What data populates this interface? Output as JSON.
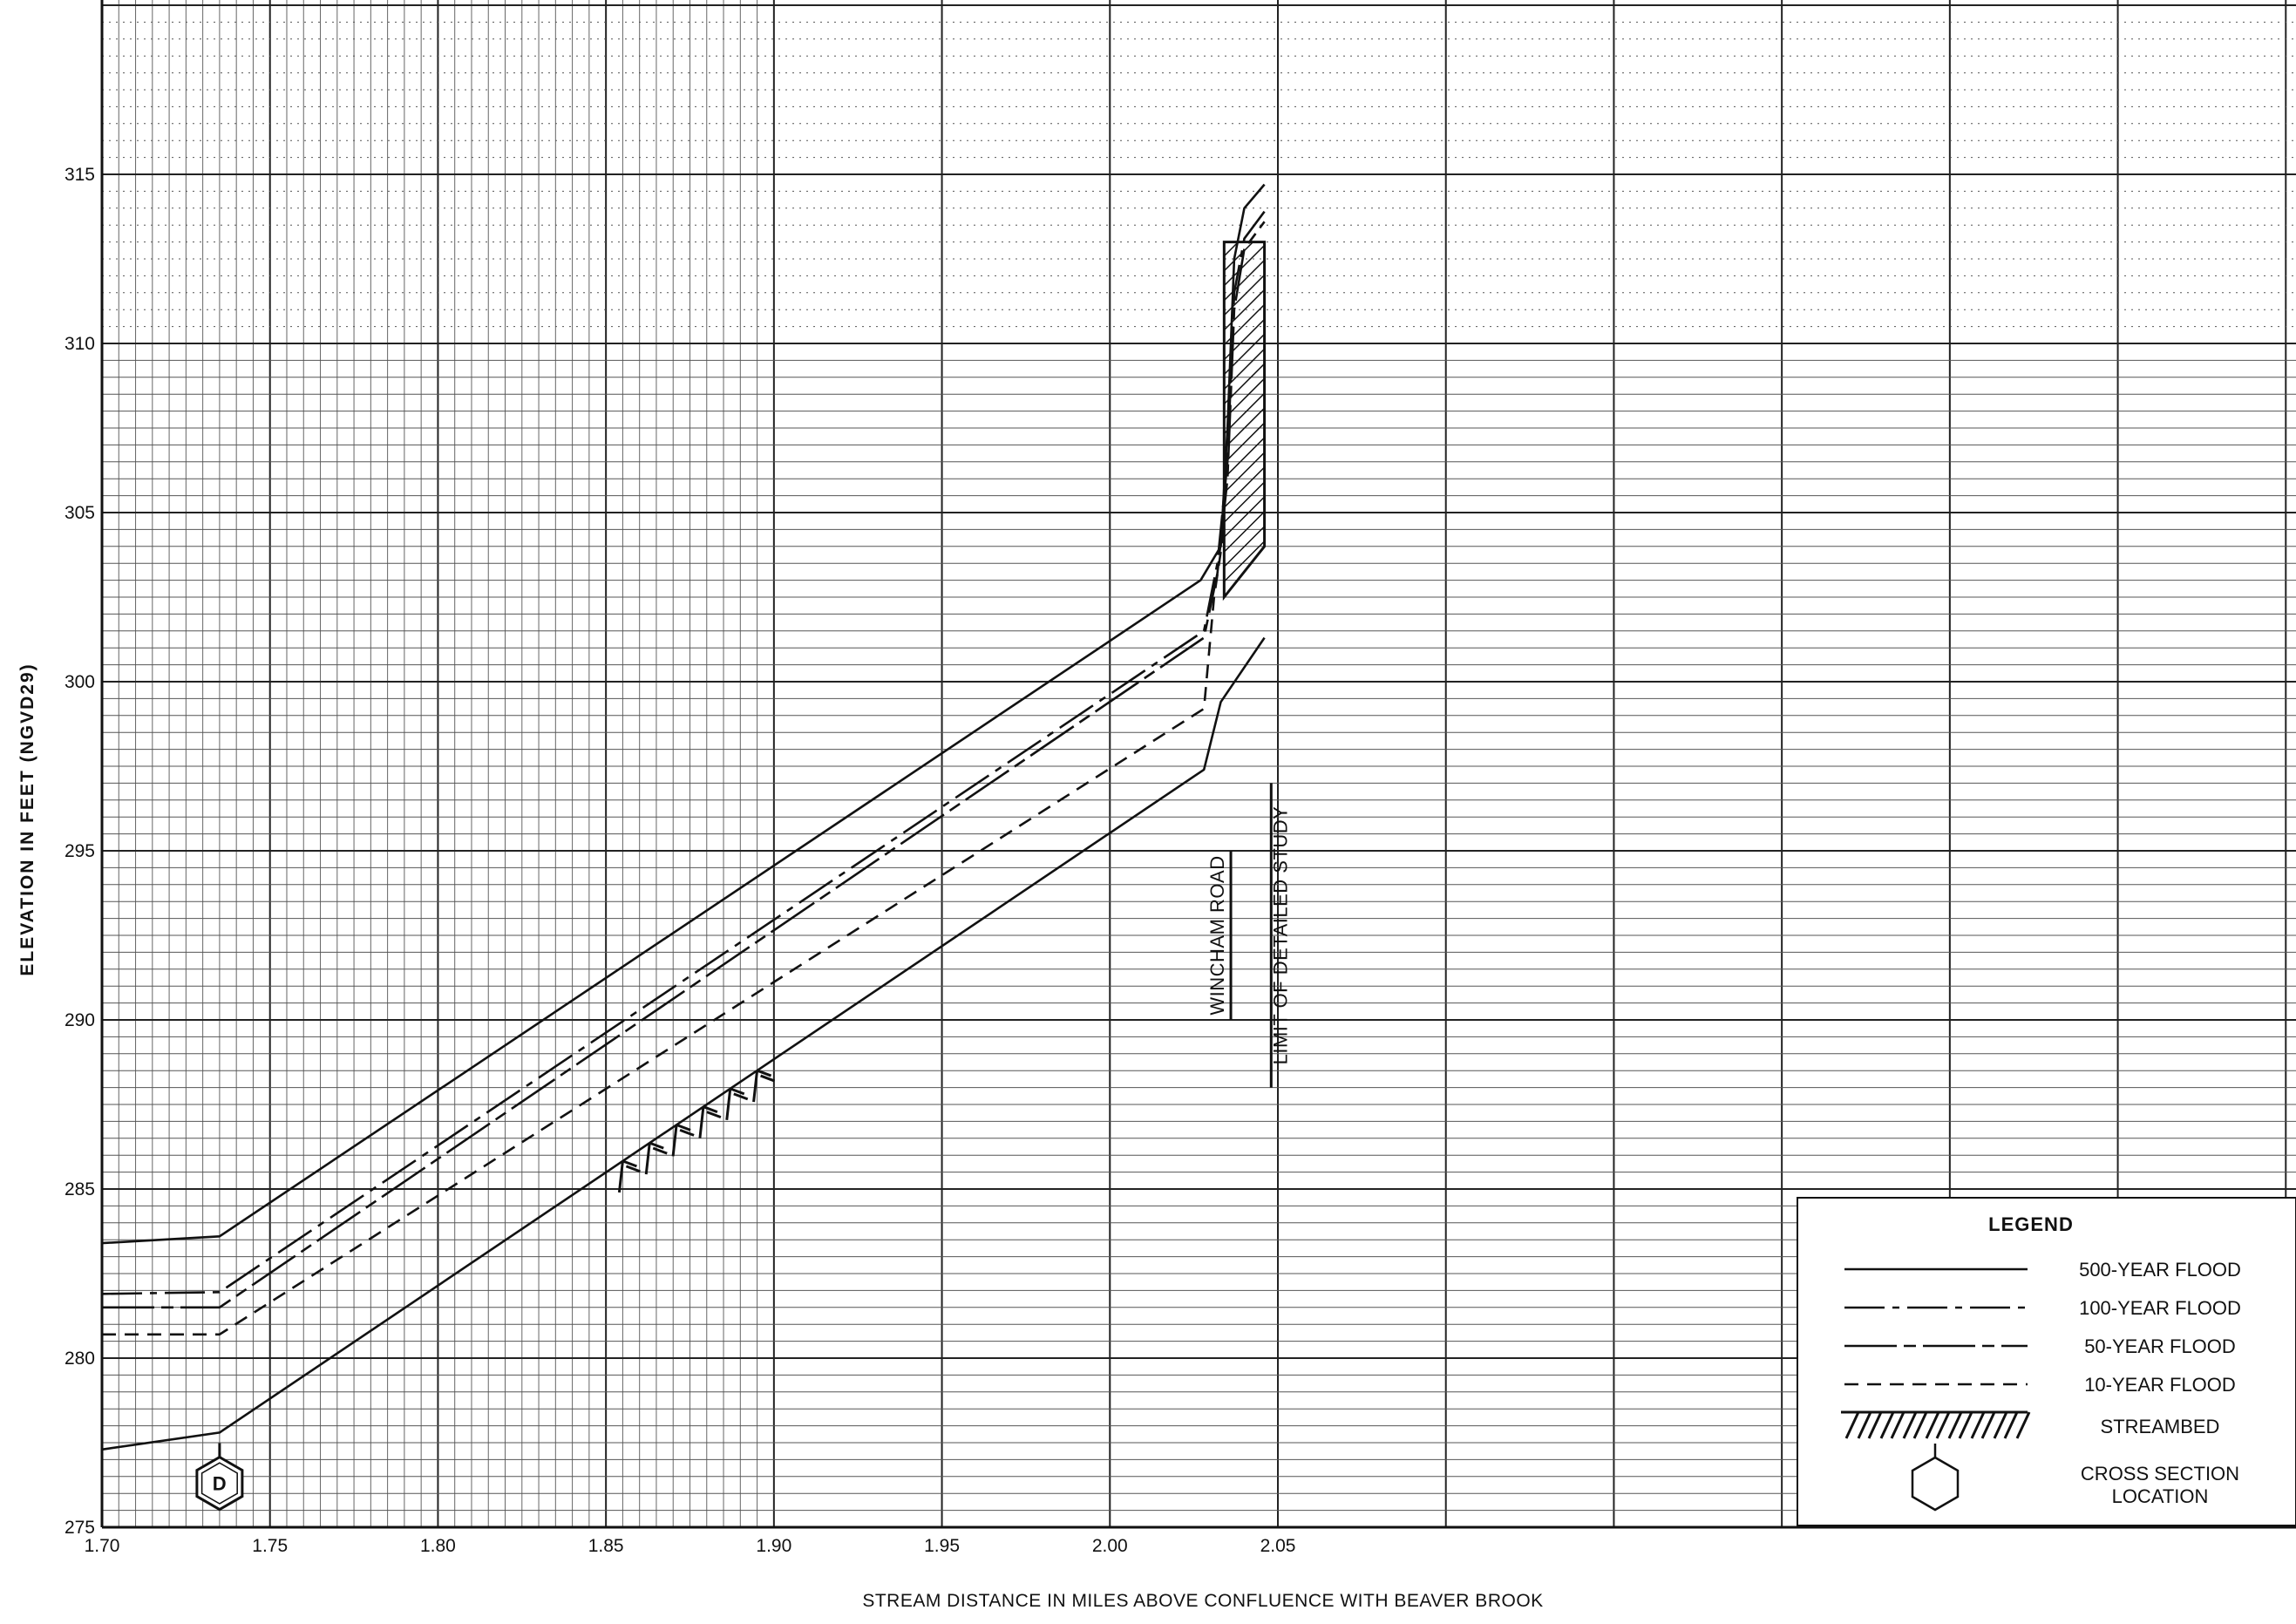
{
  "chart_data": {
    "type": "line",
    "title": "",
    "xlabel": "STREAM DISTANCE IN MILES ABOVE CONFLUENCE WITH BEAVER BROOK",
    "ylabel": "ELEVATION  IN  FEET  (NGVD29)",
    "xlim": [
      1.7,
      2.36
    ],
    "ylim": [
      275,
      320
    ],
    "x_ticks": [
      "1.70",
      "1.75",
      "1.80",
      "1.85",
      "1.90",
      "1.95",
      "2.00",
      "2.05"
    ],
    "y_ticks": [
      "275",
      "280",
      "285",
      "290",
      "295",
      "300",
      "305",
      "310",
      "315"
    ],
    "grid": true,
    "series": [
      {
        "name": "500-YEAR FLOOD",
        "style": "solid",
        "points": [
          [
            1.7,
            283.4
          ],
          [
            1.735,
            283.6
          ],
          [
            2.027,
            303.0
          ],
          [
            2.033,
            304.0
          ],
          [
            2.035,
            307.5
          ],
          [
            2.037,
            312.5
          ],
          [
            2.04,
            314.0
          ],
          [
            2.046,
            314.7
          ]
        ]
      },
      {
        "name": "100-YEAR FLOOD",
        "style": "long-dash",
        "points": [
          [
            1.7,
            281.9
          ],
          [
            1.735,
            281.95
          ],
          [
            2.028,
            301.5
          ],
          [
            2.032,
            303.5
          ],
          [
            2.035,
            306.5
          ],
          [
            2.037,
            311.5
          ],
          [
            2.04,
            313.1
          ],
          [
            2.046,
            313.9
          ]
        ]
      },
      {
        "name": "50-YEAR FLOOD",
        "style": "dash-dot",
        "points": [
          [
            1.7,
            281.5
          ],
          [
            1.735,
            281.5
          ],
          [
            2.028,
            301.3
          ],
          [
            2.032,
            303.2
          ],
          [
            2.035,
            306.0
          ],
          [
            2.037,
            311.0
          ],
          [
            2.04,
            312.8
          ],
          [
            2.046,
            313.6
          ]
        ]
      },
      {
        "name": "10-YEAR FLOOD",
        "style": "short-dash",
        "points": [
          [
            1.7,
            280.7
          ],
          [
            1.735,
            280.7
          ],
          [
            2.028,
            299.2
          ],
          [
            2.031,
            302.5
          ],
          [
            2.034,
            304.5
          ]
        ]
      },
      {
        "name": "STREAMBED",
        "style": "solid",
        "points": [
          [
            1.7,
            277.3
          ],
          [
            1.735,
            277.8
          ],
          [
            2.028,
            297.4
          ],
          [
            2.033,
            299.4
          ],
          [
            2.046,
            301.3
          ]
        ]
      }
    ],
    "streambed_hatch_x": [
      1.855,
      1.9
    ],
    "bridge": {
      "x": [
        2.034,
        2.046
      ],
      "bottom": 304.0,
      "top": 313.0,
      "left_bottom": 302.5
    },
    "annotations": [
      {
        "text": "WINCHAM ROAD",
        "x": 2.036,
        "y_from": 290,
        "y_to": 295
      },
      {
        "text": "LIMIT OF DETAILED STUDY",
        "x": 2.048,
        "y_from": 288,
        "y_to": 297
      }
    ],
    "cross_section": {
      "label": "D",
      "x": 1.735,
      "y": 276.3
    },
    "legend": {
      "title": "LEGEND",
      "position": "bottom-right",
      "entries": [
        {
          "label": "500-YEAR FLOOD",
          "style": "solid"
        },
        {
          "label": "100-YEAR FLOOD",
          "style": "long-dash"
        },
        {
          "label": "50-YEAR FLOOD",
          "style": "dash-dot"
        },
        {
          "label": "10-YEAR FLOOD",
          "style": "short-dash"
        },
        {
          "label": "STREAMBED",
          "style": "hatch"
        },
        {
          "label": "CROSS SECTION",
          "label2": "LOCATION",
          "style": "hexagon"
        }
      ]
    }
  }
}
